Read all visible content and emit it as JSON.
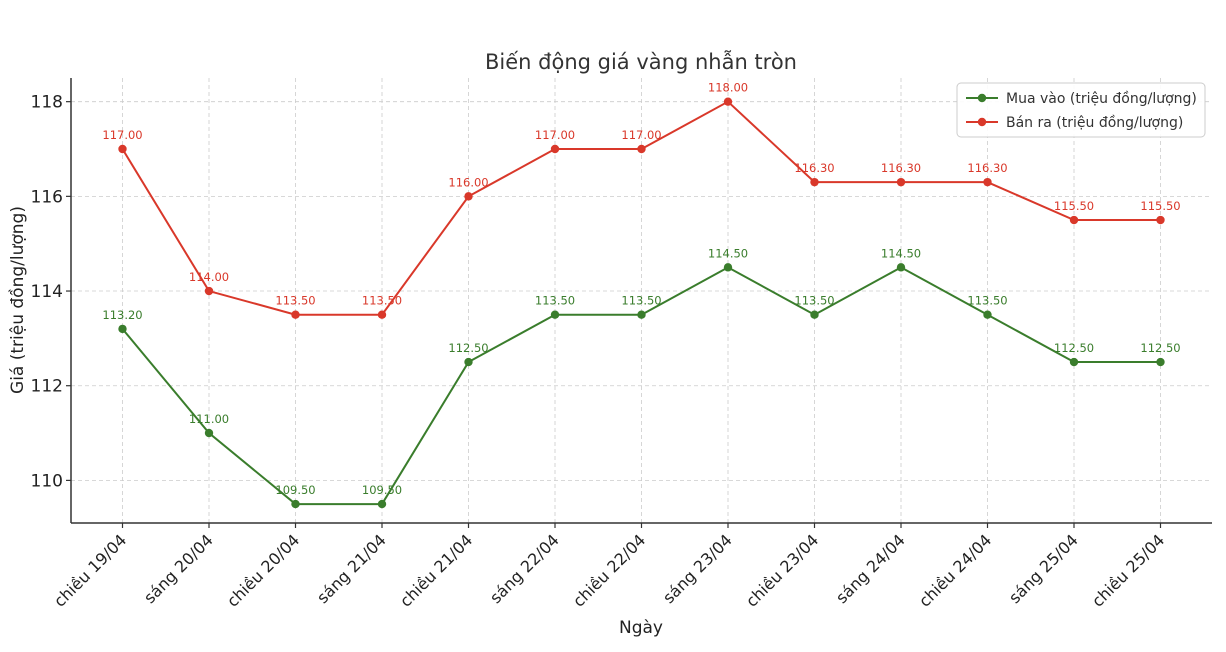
{
  "chart_data": {
    "type": "line",
    "title": "Biến động giá vàng nhẫn tròn",
    "xlabel": "Ngày",
    "ylabel": "Giá (triệu đồng/lượng)",
    "categories": [
      "chiều 19/04",
      "sáng 20/04",
      "chiều 20/04",
      "sáng 21/04",
      "chiều 21/04",
      "sáng 22/04",
      "chiều 22/04",
      "sáng 23/04",
      "chiều 23/04",
      "sáng 24/04",
      "chiều 24/04",
      "sáng 25/04",
      "chiều 25/04"
    ],
    "series": [
      {
        "name": "Mua vào (triệu đồng/lượng)",
        "color": "#3a7d2c",
        "values": [
          113.2,
          111.0,
          109.5,
          109.5,
          112.5,
          113.5,
          113.5,
          114.5,
          113.5,
          114.5,
          113.5,
          112.5,
          112.5
        ],
        "labels": [
          "113.20",
          "111.00",
          "109.50",
          "109.50",
          "112.50",
          "113.50",
          "113.50",
          "114.50",
          "113.50",
          "114.50",
          "113.50",
          "112.50",
          "112.50"
        ]
      },
      {
        "name": "Bán ra (triệu đồng/lượng)",
        "color": "#d9382a",
        "values": [
          117.0,
          114.0,
          113.5,
          113.5,
          116.0,
          117.0,
          117.0,
          118.0,
          116.3,
          116.3,
          116.3,
          115.5,
          115.5
        ],
        "labels": [
          "117.00",
          "114.00",
          "113.50",
          "113.50",
          "116.00",
          "117.00",
          "117.00",
          "118.00",
          "116.30",
          "116.30",
          "116.30",
          "115.50",
          "115.50"
        ]
      }
    ],
    "ylim": [
      109.1,
      118.5
    ],
    "yticks": [
      110,
      112,
      114,
      116,
      118
    ],
    "grid": true,
    "legend": "top-right"
  }
}
